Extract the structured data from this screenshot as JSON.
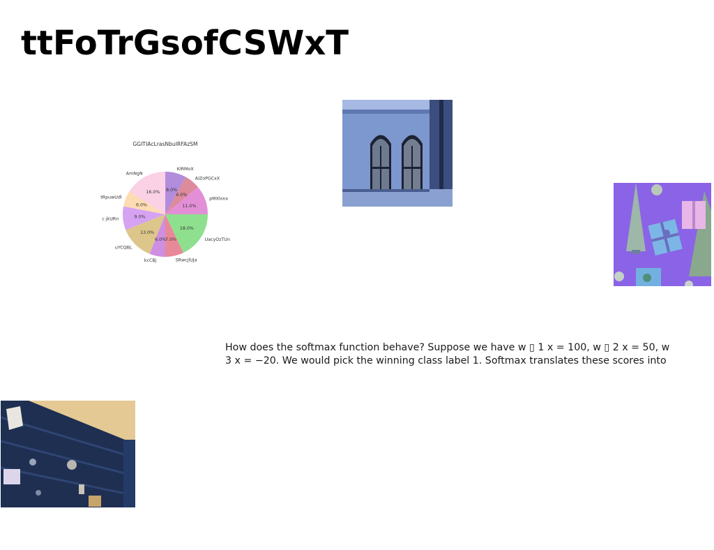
{
  "page": {
    "title": "ttFoTrGsofCSWxT",
    "paragraph_lines": [
      "How does the softmax function behave? Suppose we have w ▯ 1 x = 100, w ▯ 2 x = 50, w",
      "3 x = −20. We would pick the winning class label 1. Softmax translates these scores into"
    ]
  },
  "images": {
    "windows_photo": "blue-building-arched-windows-photo",
    "gifts_photo": "purple-gift-boxes-and-trees-photo",
    "wall_photo": "dark-blue-wooden-wall-photo"
  },
  "chart_data": {
    "type": "pie",
    "title": "GGITIAcLrasNbuIRFAzSM",
    "start_angle": 90,
    "direction": "clockwise",
    "slices": [
      {
        "label": "KIRMoX",
        "value": 8.0,
        "pct_label": "8.0%",
        "color": "#b28ddb"
      },
      {
        "label": "AIZoPGCxX",
        "value": 6.0,
        "pct_label": "6.0%",
        "color": "#dc8a9c"
      },
      {
        "label": "pMXlonx",
        "value": 11.0,
        "pct_label": "11.0%",
        "color": "#e38fd8"
      },
      {
        "label": "UacyOzTUn",
        "value": 18.0,
        "pct_label": "18.0%",
        "color": "#8ee08e"
      },
      {
        "label": "SRwcjlUJa",
        "value": 7.0,
        "pct_label": "7.0%",
        "color": "#e8899a"
      },
      {
        "label": "kcCBj",
        "value": 6.0,
        "pct_label": "6.0%",
        "color": "#cf8fe0"
      },
      {
        "label": "uYCQBL",
        "value": 13.0,
        "pct_label": "13.0%",
        "color": "#dcc68a"
      },
      {
        "label": "c jkURn",
        "value": 9.0,
        "pct_label": "9.0%",
        "color": "#d6a3f2"
      },
      {
        "label": "tRpuwUdl",
        "value": 6.0,
        "pct_label": "6.0%",
        "color": "#fddbb3"
      },
      {
        "label": "AmNgN",
        "value": 16.0,
        "pct_label": "16.0%",
        "color": "#fbd1e6"
      }
    ]
  }
}
